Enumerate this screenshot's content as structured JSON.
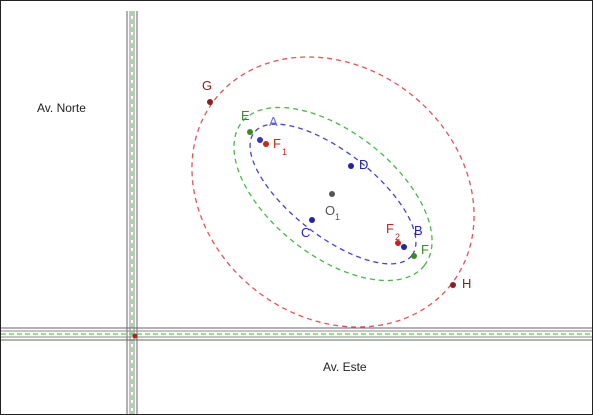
{
  "roads": {
    "north_label": "Av. Norte",
    "east_label": "Av. Este",
    "line_color": "#555555",
    "dash_color": "#55cc55"
  },
  "ellipses": [
    {
      "id": "red",
      "color": "#e05555"
    },
    {
      "id": "green",
      "color": "#44bb44"
    },
    {
      "id": "blue",
      "color": "#4444cc"
    }
  ],
  "points": {
    "G": {
      "label": "G",
      "color": "#8b2020"
    },
    "E": {
      "label": "E",
      "color": "#3d8b1f"
    },
    "A": {
      "label": "A",
      "color": "#6a6aee"
    },
    "F1": {
      "label": "F",
      "sub": "1",
      "color": "#cc2222"
    },
    "D": {
      "label": "D",
      "color": "#2222aa"
    },
    "O1": {
      "label": "O",
      "sub": "1",
      "color": "#555555"
    },
    "C": {
      "label": "C",
      "color": "#2222aa"
    },
    "F2": {
      "label": "F",
      "sub": "2",
      "color": "#cc2222"
    },
    "B": {
      "label": "B",
      "color": "#2222aa"
    },
    "F": {
      "label": "F",
      "color": "#3d8b1f"
    },
    "H": {
      "label": "H",
      "color": "#8b2020"
    },
    "origin": {
      "color": "#aa2222"
    }
  }
}
